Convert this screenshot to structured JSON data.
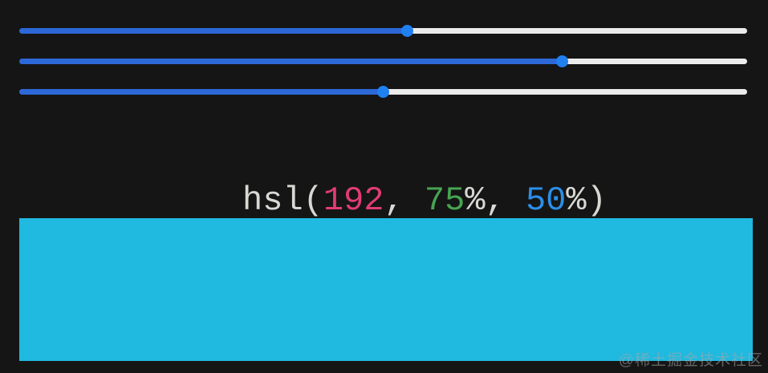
{
  "page": {
    "background": "#151515"
  },
  "sliders": {
    "fill_color": "#2d68d8",
    "empty_color": "#ebebeb",
    "thumb_color": "#2080f0",
    "items": [
      {
        "id": "hue",
        "value": 192,
        "min": 0,
        "max": 360
      },
      {
        "id": "saturation",
        "value": 75,
        "min": 0,
        "max": 100
      },
      {
        "id": "lightness",
        "value": 50,
        "min": 0,
        "max": 100
      }
    ]
  },
  "color_label": {
    "parts": [
      {
        "text": "hsl(",
        "color": "#d8d8d4"
      },
      {
        "text": "192",
        "color": "#e03c76"
      },
      {
        "text": ", ",
        "color": "#d8d8d4"
      },
      {
        "text": "75",
        "color": "#46a552"
      },
      {
        "text": "%, ",
        "color": "#d8d8d4"
      },
      {
        "text": "50",
        "color": "#2b8fe8"
      },
      {
        "text": "%)",
        "color": "#d8d8d4"
      }
    ]
  },
  "swatch": {
    "color": "#20b9df"
  },
  "watermark": {
    "text": "@稀土掘金技术社区"
  }
}
